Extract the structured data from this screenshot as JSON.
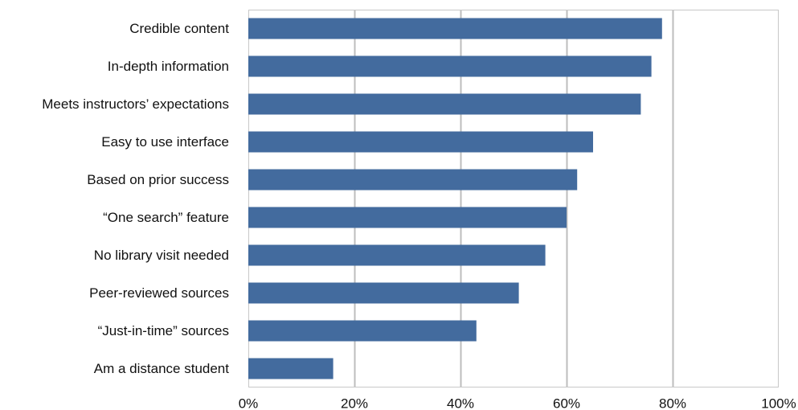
{
  "chart_data": {
    "type": "bar",
    "orientation": "horizontal",
    "categories": [
      "Credible content",
      "In-depth information",
      "Meets instructors’ expectations",
      "Easy to use interface",
      "Based on prior success",
      "“One search” feature",
      "No library visit needed",
      "Peer-reviewed sources",
      "“Just-in-time” sources",
      "Am a distance student"
    ],
    "values": [
      78,
      76,
      74,
      65,
      62,
      60,
      56,
      51,
      43,
      16
    ],
    "xlim": [
      0,
      100
    ],
    "x_ticks": [
      0,
      20,
      40,
      60,
      80,
      100
    ],
    "x_tick_labels": [
      "0%",
      "20%",
      "40%",
      "60%",
      "80%",
      "100%"
    ],
    "grid": "vertical",
    "legend": "none",
    "colors": {
      "bar": "#436b9e",
      "grid": "#bdbdbd",
      "frame": "#c8c8c8"
    }
  }
}
